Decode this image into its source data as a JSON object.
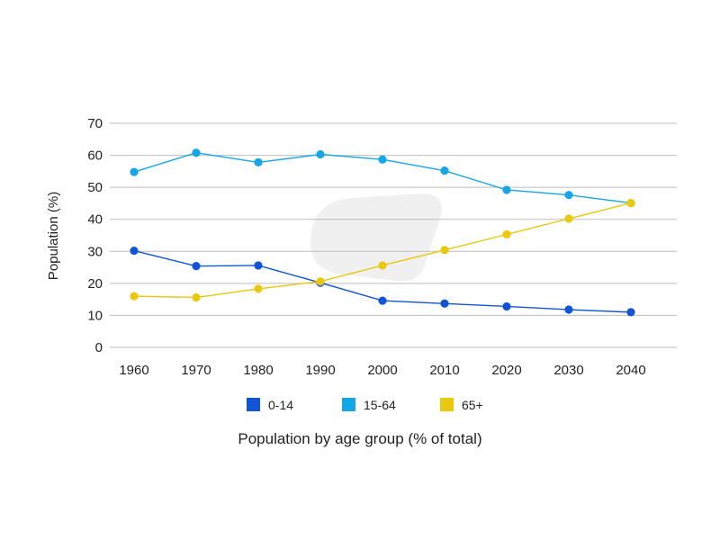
{
  "chart_data": {
    "type": "line",
    "title": "",
    "xlabel": "Population by age group (% of total)",
    "ylabel": "Population (%)",
    "ylim": [
      0,
      70
    ],
    "yticks": [
      0,
      10,
      20,
      30,
      40,
      50,
      60,
      70
    ],
    "categories": [
      "1960",
      "1970",
      "1980",
      "1990",
      "2000",
      "2010",
      "2020",
      "2030",
      "2040"
    ],
    "grid": true,
    "legend_position": "bottom",
    "series": [
      {
        "name": "0-14",
        "color": "#1155d6",
        "values": [
          30.2,
          25.4,
          25.6,
          20.2,
          14.6,
          13.7,
          12.8,
          11.8,
          11.0
        ]
      },
      {
        "name": "15-64",
        "color": "#15a6e6",
        "values": [
          54.8,
          60.8,
          57.8,
          60.3,
          58.7,
          55.2,
          49.2,
          47.6,
          45.1
        ]
      },
      {
        "name": "65+",
        "color": "#eac80e",
        "values": [
          16.0,
          15.6,
          18.3,
          20.6,
          25.6,
          30.4,
          35.3,
          40.2,
          45.1
        ]
      }
    ]
  }
}
